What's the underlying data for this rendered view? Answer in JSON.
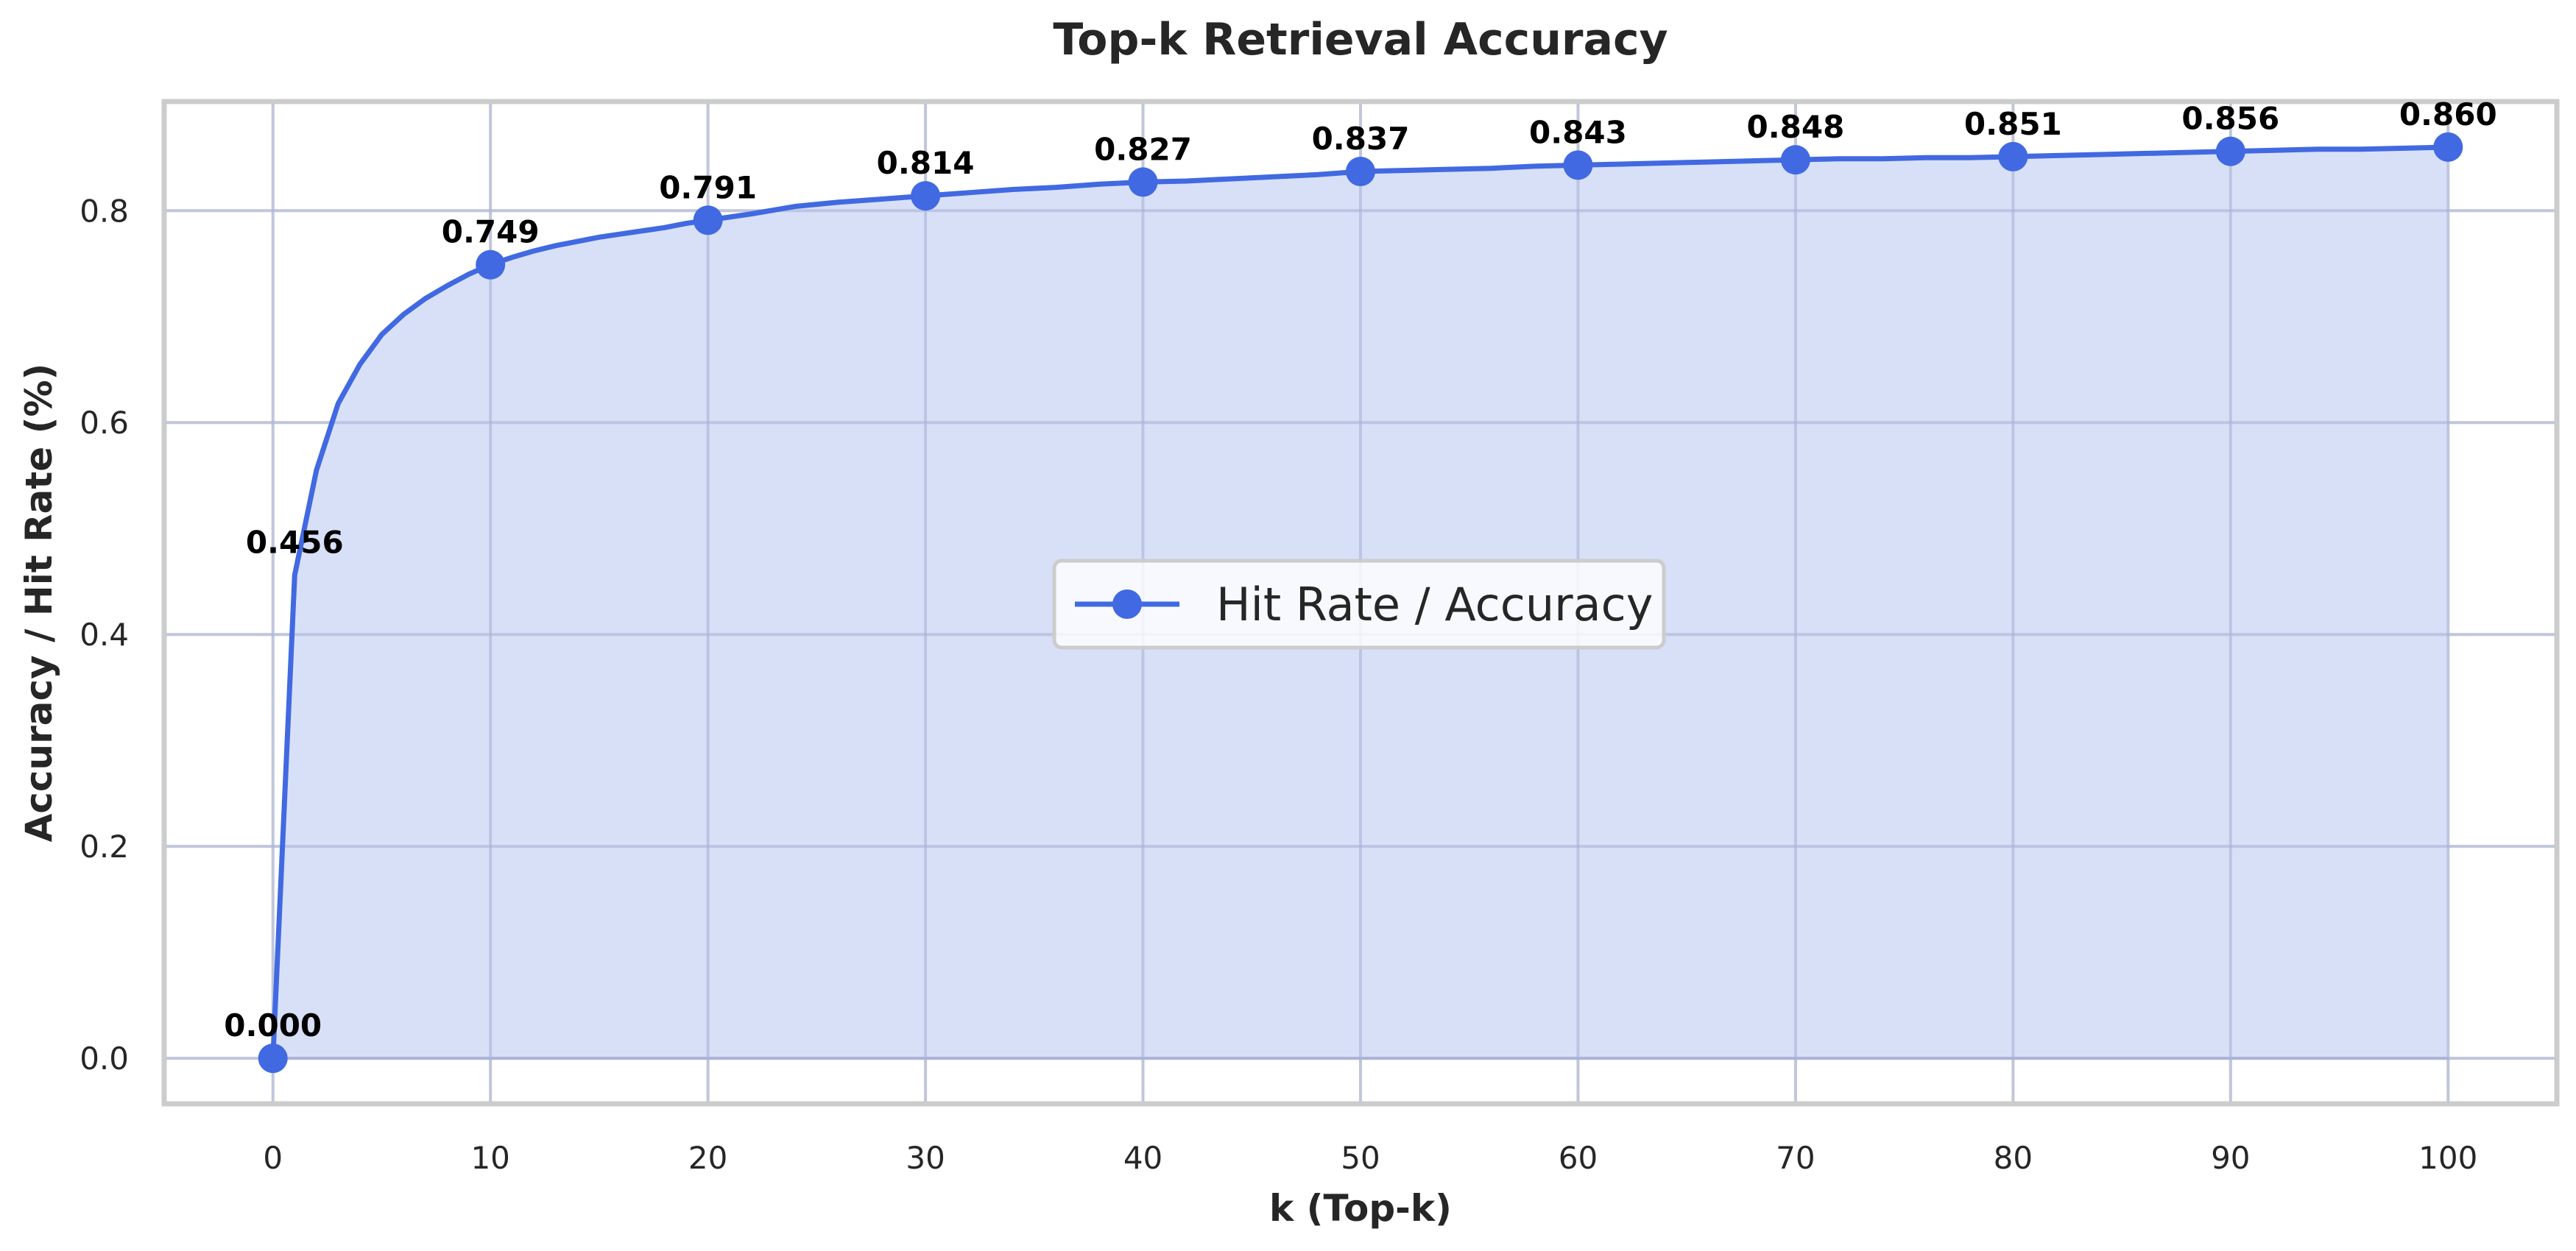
{
  "chart_data": {
    "type": "line",
    "title": "Top-k Retrieval Accuracy",
    "xlabel": "k (Top-k)",
    "ylabel": "Accuracy / Hit Rate (%)",
    "xlim": [
      -5,
      105
    ],
    "ylim": [
      -0.043,
      0.903
    ],
    "xticks": [
      0,
      10,
      20,
      30,
      40,
      50,
      60,
      70,
      80,
      90,
      100
    ],
    "yticks": [
      0.0,
      0.2,
      0.4,
      0.6,
      0.8
    ],
    "x": [
      0,
      1,
      2,
      3,
      4,
      5,
      6,
      7,
      8,
      9,
      10,
      11,
      12,
      13,
      14,
      15,
      16,
      17,
      18,
      19,
      20,
      22,
      24,
      26,
      28,
      30,
      32,
      34,
      36,
      38,
      40,
      42,
      44,
      46,
      48,
      50,
      52,
      54,
      56,
      58,
      60,
      62,
      64,
      66,
      68,
      70,
      72,
      74,
      76,
      78,
      80,
      82,
      84,
      86,
      88,
      90,
      92,
      94,
      96,
      98,
      100
    ],
    "series": [
      {
        "name": "Hit Rate / Accuracy",
        "color": "#4169e1",
        "fill_color": "#d8e0f8",
        "marker": "circle",
        "values": [
          0.0,
          0.456,
          0.555,
          0.618,
          0.655,
          0.683,
          0.702,
          0.717,
          0.729,
          0.74,
          0.749,
          0.756,
          0.762,
          0.767,
          0.771,
          0.775,
          0.778,
          0.781,
          0.784,
          0.788,
          0.791,
          0.797,
          0.804,
          0.808,
          0.811,
          0.814,
          0.817,
          0.82,
          0.822,
          0.825,
          0.827,
          0.828,
          0.83,
          0.832,
          0.834,
          0.837,
          0.838,
          0.839,
          0.84,
          0.842,
          0.843,
          0.844,
          0.845,
          0.846,
          0.847,
          0.848,
          0.849,
          0.849,
          0.85,
          0.85,
          0.851,
          0.852,
          0.853,
          0.854,
          0.855,
          0.856,
          0.857,
          0.858,
          0.858,
          0.859,
          0.86
        ]
      }
    ],
    "markers_x": [
      0,
      10,
      20,
      30,
      40,
      50,
      60,
      70,
      80,
      90,
      100
    ],
    "data_labels": [
      {
        "x": 0,
        "y": 0.0,
        "text": "0.000"
      },
      {
        "x": 1,
        "y": 0.456,
        "text": "0.456"
      },
      {
        "x": 10,
        "y": 0.749,
        "text": "0.749"
      },
      {
        "x": 20,
        "y": 0.791,
        "text": "0.791"
      },
      {
        "x": 30,
        "y": 0.814,
        "text": "0.814"
      },
      {
        "x": 40,
        "y": 0.827,
        "text": "0.827"
      },
      {
        "x": 50,
        "y": 0.837,
        "text": "0.837"
      },
      {
        "x": 60,
        "y": 0.843,
        "text": "0.843"
      },
      {
        "x": 70,
        "y": 0.848,
        "text": "0.848"
      },
      {
        "x": 80,
        "y": 0.851,
        "text": "0.851"
      },
      {
        "x": 90,
        "y": 0.856,
        "text": "0.856"
      },
      {
        "x": 100,
        "y": 0.86,
        "text": "0.860"
      }
    ],
    "grid": true,
    "legend": {
      "position": "center",
      "label": "Hit Rate / Accuracy"
    }
  }
}
